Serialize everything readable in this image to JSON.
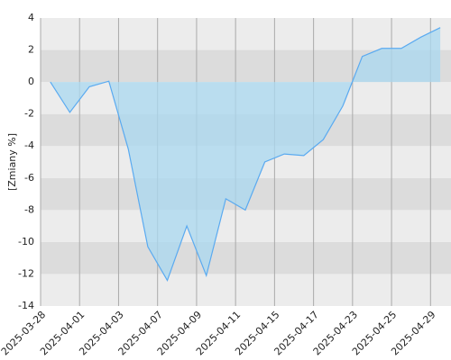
{
  "chart_data": {
    "type": "area",
    "y_label": "[Zmiany %]",
    "x": [
      0,
      1,
      2,
      3,
      4,
      5,
      6,
      7,
      8,
      9,
      10,
      11,
      12,
      13,
      14,
      15,
      16,
      17,
      18,
      19,
      20
    ],
    "series": [
      {
        "color": "#5aaaf0",
        "values": [
          0,
          -1.9,
          -0.3,
          0.05,
          -4.2,
          -10.3,
          -12.4,
          -9,
          -12.1,
          -7.3,
          -8,
          -5,
          -4.5,
          -4.6,
          -3.6,
          -1.5,
          1.6,
          2.1,
          2.1,
          2.8,
          3.4
        ]
      }
    ],
    "xlim": [
      -0.5,
      20.55
    ],
    "xticks": [
      {
        "value": -0.5,
        "label": "2025-03-28"
      },
      {
        "value": 1.5,
        "label": "2025-04-01"
      },
      {
        "value": 3.5,
        "label": "2025-04-03"
      },
      {
        "value": 5.5,
        "label": "2025-04-07"
      },
      {
        "value": 7.5,
        "label": "2025-04-09"
      },
      {
        "value": 9.5,
        "label": "2025-04-11"
      },
      {
        "value": 11.5,
        "label": "2025-04-15"
      },
      {
        "value": 13.5,
        "label": "2025-04-17"
      },
      {
        "value": 15.5,
        "label": "2025-04-23"
      },
      {
        "value": 17.5,
        "label": "2025-04-25"
      },
      {
        "value": 19.5,
        "label": "2025-04-29"
      }
    ],
    "ylim": [
      -14,
      4
    ],
    "yticks": [
      -14,
      -12,
      -10,
      -8,
      -6,
      -4,
      -2,
      0,
      2,
      4
    ],
    "grid": true
  }
}
